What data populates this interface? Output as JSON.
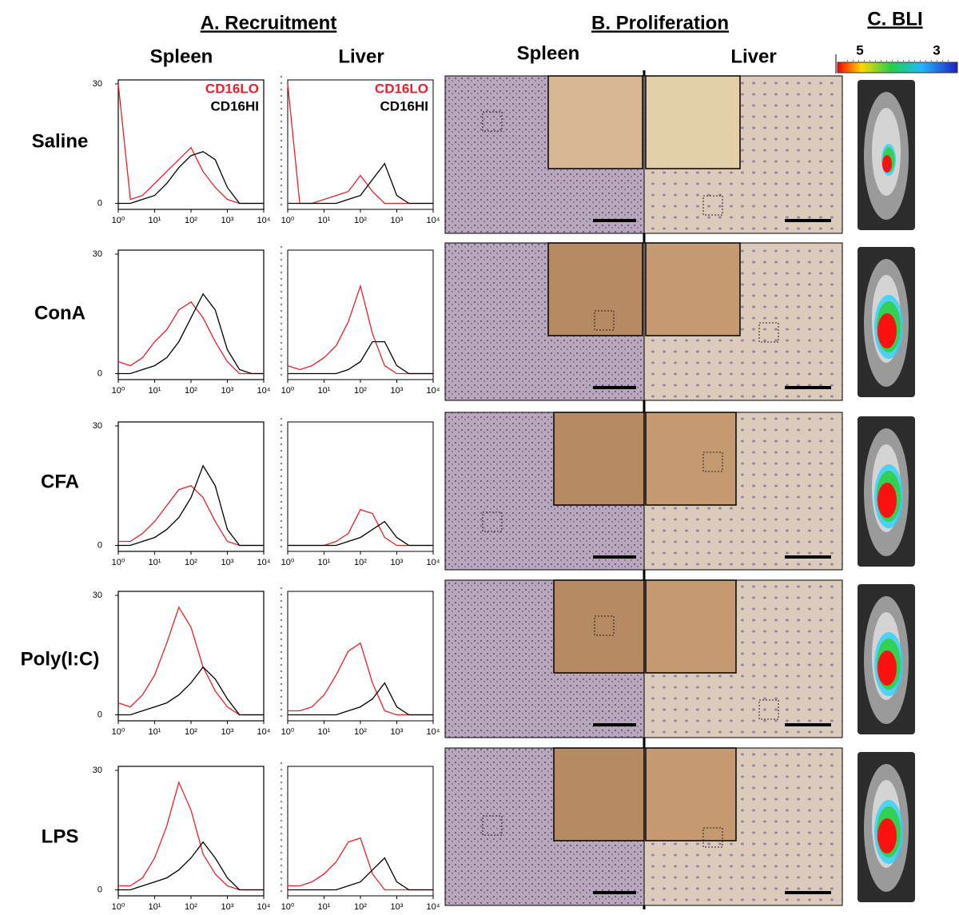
{
  "headers": {
    "recruitment": "A. Recruitment",
    "proliferation": "B. Proliferation",
    "bli": "C. BLI"
  },
  "column_labels": {
    "recruitment_spleen": "Spleen",
    "recruitment_liver": "Liver",
    "proliferation_spleen": "Spleen",
    "proliferation_liver": "Liver"
  },
  "bli_scale": {
    "low": "5",
    "high": "3"
  },
  "rows": [
    "Saline",
    "ConA",
    "CFA",
    "Poly(I:C)",
    "LPS"
  ],
  "chart_data": [
    {
      "type": "line",
      "log_x": true,
      "xlim": [
        1,
        10000
      ],
      "ylim": [
        -1.5,
        31
      ],
      "x": [
        1,
        2.15,
        4.64,
        10,
        21.5,
        46.4,
        100,
        215,
        464,
        1000,
        2154,
        4642,
        10000
      ],
      "xticks": [
        {
          "value": 1,
          "label": "10⁰"
        },
        {
          "value": 10,
          "label": "10¹"
        },
        {
          "value": 100,
          "label": "10²"
        },
        {
          "value": 1000,
          "label": "10³"
        },
        {
          "value": 10000,
          "label": "10⁴"
        }
      ],
      "yticks": [
        0,
        30
      ],
      "series": [
        {
          "name": "CD16LO",
          "color": "#e8202a",
          "values": [
            30,
            1,
            2,
            5,
            8,
            11,
            14,
            8,
            4,
            1,
            0,
            0,
            0
          ]
        },
        {
          "name": "CD16HI",
          "color": "#000000",
          "values": [
            0,
            0,
            1,
            2,
            5,
            9,
            12,
            13,
            11,
            4,
            0,
            0,
            0
          ]
        }
      ]
    },
    {
      "type": "line",
      "log_x": true,
      "xlim": [
        1,
        10000
      ],
      "ylim": [
        -1.5,
        31
      ],
      "x": [
        1,
        2.15,
        4.64,
        10,
        21.5,
        46.4,
        100,
        215,
        464,
        1000,
        2154,
        4642,
        10000
      ],
      "xticks": [
        {
          "value": 1,
          "label": "10⁰"
        },
        {
          "value": 10,
          "label": "10¹"
        },
        {
          "value": 100,
          "label": "10²"
        },
        {
          "value": 1000,
          "label": "10³"
        },
        {
          "value": 10000,
          "label": "10⁴"
        }
      ],
      "series": [
        {
          "name": "CD16LO",
          "color": "#e8202a",
          "values": [
            30,
            0,
            0,
            1,
            2,
            3,
            7,
            3,
            0,
            0,
            0,
            0,
            0
          ]
        },
        {
          "name": "CD16HI",
          "color": "#000000",
          "values": [
            0,
            0,
            0,
            0,
            0,
            1,
            2,
            6,
            10,
            2,
            0,
            0,
            0
          ]
        }
      ]
    },
    {
      "type": "line",
      "log_x": true,
      "xlim": [
        1,
        10000
      ],
      "ylim": [
        -1.5,
        31
      ],
      "x": [
        1,
        2.15,
        4.64,
        10,
        21.5,
        46.4,
        100,
        215,
        464,
        1000,
        2154,
        4642,
        10000
      ],
      "xticks": [
        {
          "value": 1,
          "label": "10⁰"
        },
        {
          "value": 10,
          "label": "10¹"
        },
        {
          "value": 100,
          "label": "10²"
        },
        {
          "value": 1000,
          "label": "10³"
        },
        {
          "value": 10000,
          "label": "10⁴"
        }
      ],
      "yticks": [
        0,
        30
      ],
      "series": [
        {
          "color": "#e8202a",
          "values": [
            3,
            2,
            4,
            8,
            11,
            16,
            18,
            14,
            8,
            3,
            0,
            0,
            0
          ]
        },
        {
          "color": "#000000",
          "values": [
            0,
            0,
            1,
            2,
            4,
            8,
            14,
            20,
            16,
            6,
            1,
            0,
            0
          ]
        }
      ]
    },
    {
      "type": "line",
      "log_x": true,
      "xlim": [
        1,
        10000
      ],
      "ylim": [
        -1.5,
        31
      ],
      "x": [
        1,
        2.15,
        4.64,
        10,
        21.5,
        46.4,
        100,
        215,
        464,
        1000,
        2154,
        4642,
        10000
      ],
      "xticks": [
        {
          "value": 1,
          "label": "10⁰"
        },
        {
          "value": 10,
          "label": "10¹"
        },
        {
          "value": 100,
          "label": "10²"
        },
        {
          "value": 1000,
          "label": "10³"
        },
        {
          "value": 10000,
          "label": "10⁴"
        }
      ],
      "series": [
        {
          "color": "#e8202a",
          "values": [
            2,
            1,
            2,
            4,
            7,
            13,
            22,
            10,
            2,
            0,
            0,
            0,
            0
          ]
        },
        {
          "color": "#000000",
          "values": [
            0,
            0,
            0,
            0,
            0,
            1,
            3,
            8,
            8,
            2,
            0,
            0,
            0
          ]
        }
      ]
    },
    {
      "type": "line",
      "log_x": true,
      "xlim": [
        1,
        10000
      ],
      "ylim": [
        -1.5,
        31
      ],
      "x": [
        1,
        2.15,
        4.64,
        10,
        21.5,
        46.4,
        100,
        215,
        464,
        1000,
        2154,
        4642,
        10000
      ],
      "xticks": [
        {
          "value": 1,
          "label": "10⁰"
        },
        {
          "value": 10,
          "label": "10¹"
        },
        {
          "value": 100,
          "label": "10²"
        },
        {
          "value": 1000,
          "label": "10³"
        },
        {
          "value": 10000,
          "label": "10⁴"
        }
      ],
      "yticks": [
        0,
        30
      ],
      "series": [
        {
          "color": "#e8202a",
          "values": [
            1,
            1,
            3,
            6,
            10,
            14,
            15,
            12,
            6,
            1,
            0,
            0,
            0
          ]
        },
        {
          "color": "#000000",
          "values": [
            0,
            0,
            1,
            2,
            4,
            7,
            12,
            20,
            15,
            4,
            0,
            0,
            0
          ]
        }
      ]
    },
    {
      "type": "line",
      "log_x": true,
      "xlim": [
        1,
        10000
      ],
      "ylim": [
        -1.5,
        31
      ],
      "x": [
        1,
        2.15,
        4.64,
        10,
        21.5,
        46.4,
        100,
        215,
        464,
        1000,
        2154,
        4642,
        10000
      ],
      "xticks": [
        {
          "value": 1,
          "label": "10⁰"
        },
        {
          "value": 10,
          "label": "10¹"
        },
        {
          "value": 100,
          "label": "10²"
        },
        {
          "value": 1000,
          "label": "10³"
        },
        {
          "value": 10000,
          "label": "10⁴"
        }
      ],
      "series": [
        {
          "color": "#e8202a",
          "values": [
            0,
            0,
            0,
            0,
            1,
            3,
            9,
            8,
            2,
            0,
            0,
            0,
            0
          ]
        },
        {
          "color": "#000000",
          "values": [
            0,
            0,
            0,
            0,
            0,
            1,
            2,
            4,
            6,
            2,
            0,
            0,
            0
          ]
        }
      ]
    },
    {
      "type": "line",
      "log_x": true,
      "xlim": [
        1,
        10000
      ],
      "ylim": [
        -1.5,
        31
      ],
      "x": [
        1,
        2.15,
        4.64,
        10,
        21.5,
        46.4,
        100,
        215,
        464,
        1000,
        2154,
        4642,
        10000
      ],
      "xticks": [
        {
          "value": 1,
          "label": "10⁰"
        },
        {
          "value": 10,
          "label": "10¹"
        },
        {
          "value": 100,
          "label": "10²"
        },
        {
          "value": 1000,
          "label": "10³"
        },
        {
          "value": 10000,
          "label": "10⁴"
        }
      ],
      "yticks": [
        0,
        30
      ],
      "series": [
        {
          "color": "#e8202a",
          "values": [
            3,
            2,
            5,
            10,
            18,
            27,
            22,
            12,
            6,
            2,
            0,
            0,
            0
          ]
        },
        {
          "color": "#000000",
          "values": [
            0,
            0,
            1,
            2,
            3,
            5,
            8,
            12,
            9,
            4,
            0,
            0,
            0
          ]
        }
      ]
    },
    {
      "type": "line",
      "log_x": true,
      "xlim": [
        1,
        10000
      ],
      "ylim": [
        -1.5,
        31
      ],
      "x": [
        1,
        2.15,
        4.64,
        10,
        21.5,
        46.4,
        100,
        215,
        464,
        1000,
        2154,
        4642,
        10000
      ],
      "xticks": [
        {
          "value": 1,
          "label": "10⁰"
        },
        {
          "value": 10,
          "label": "10¹"
        },
        {
          "value": 100,
          "label": "10²"
        },
        {
          "value": 1000,
          "label": "10³"
        },
        {
          "value": 10000,
          "label": "10⁴"
        }
      ],
      "series": [
        {
          "color": "#e8202a",
          "values": [
            1,
            1,
            2,
            5,
            10,
            16,
            18,
            8,
            1,
            0,
            0,
            0,
            0
          ]
        },
        {
          "color": "#000000",
          "values": [
            0,
            0,
            0,
            0,
            0,
            1,
            2,
            4,
            8,
            2,
            0,
            0,
            0
          ]
        }
      ]
    },
    {
      "type": "line",
      "log_x": true,
      "xlim": [
        1,
        10000
      ],
      "ylim": [
        -1.5,
        31
      ],
      "x": [
        1,
        2.15,
        4.64,
        10,
        21.5,
        46.4,
        100,
        215,
        464,
        1000,
        2154,
        4642,
        10000
      ],
      "xticks": [
        {
          "value": 1,
          "label": "10⁰"
        },
        {
          "value": 10,
          "label": "10¹"
        },
        {
          "value": 100,
          "label": "10²"
        },
        {
          "value": 1000,
          "label": "10³"
        },
        {
          "value": 10000,
          "label": "10⁴"
        }
      ],
      "yticks": [
        0,
        30
      ],
      "series": [
        {
          "color": "#e8202a",
          "values": [
            1,
            1,
            3,
            8,
            16,
            27,
            20,
            9,
            4,
            1,
            0,
            0,
            0
          ]
        },
        {
          "color": "#000000",
          "values": [
            0,
            0,
            1,
            2,
            3,
            5,
            8,
            12,
            8,
            3,
            0,
            0,
            0
          ]
        }
      ]
    },
    {
      "type": "line",
      "log_x": true,
      "xlim": [
        1,
        10000
      ],
      "ylim": [
        -1.5,
        31
      ],
      "x": [
        1,
        2.15,
        4.64,
        10,
        21.5,
        46.4,
        100,
        215,
        464,
        1000,
        2154,
        4642,
        10000
      ],
      "xticks": [
        {
          "value": 1,
          "label": "10⁰"
        },
        {
          "value": 10,
          "label": "10¹"
        },
        {
          "value": 100,
          "label": "10²"
        },
        {
          "value": 1000,
          "label": "10³"
        },
        {
          "value": 10000,
          "label": "10⁴"
        }
      ],
      "series": [
        {
          "color": "#e8202a",
          "values": [
            1,
            1,
            2,
            4,
            7,
            12,
            13,
            4,
            0,
            0,
            0,
            0,
            0
          ]
        },
        {
          "color": "#000000",
          "values": [
            0,
            0,
            0,
            0,
            0,
            1,
            2,
            5,
            8,
            2,
            0,
            0,
            0
          ]
        }
      ]
    }
  ]
}
